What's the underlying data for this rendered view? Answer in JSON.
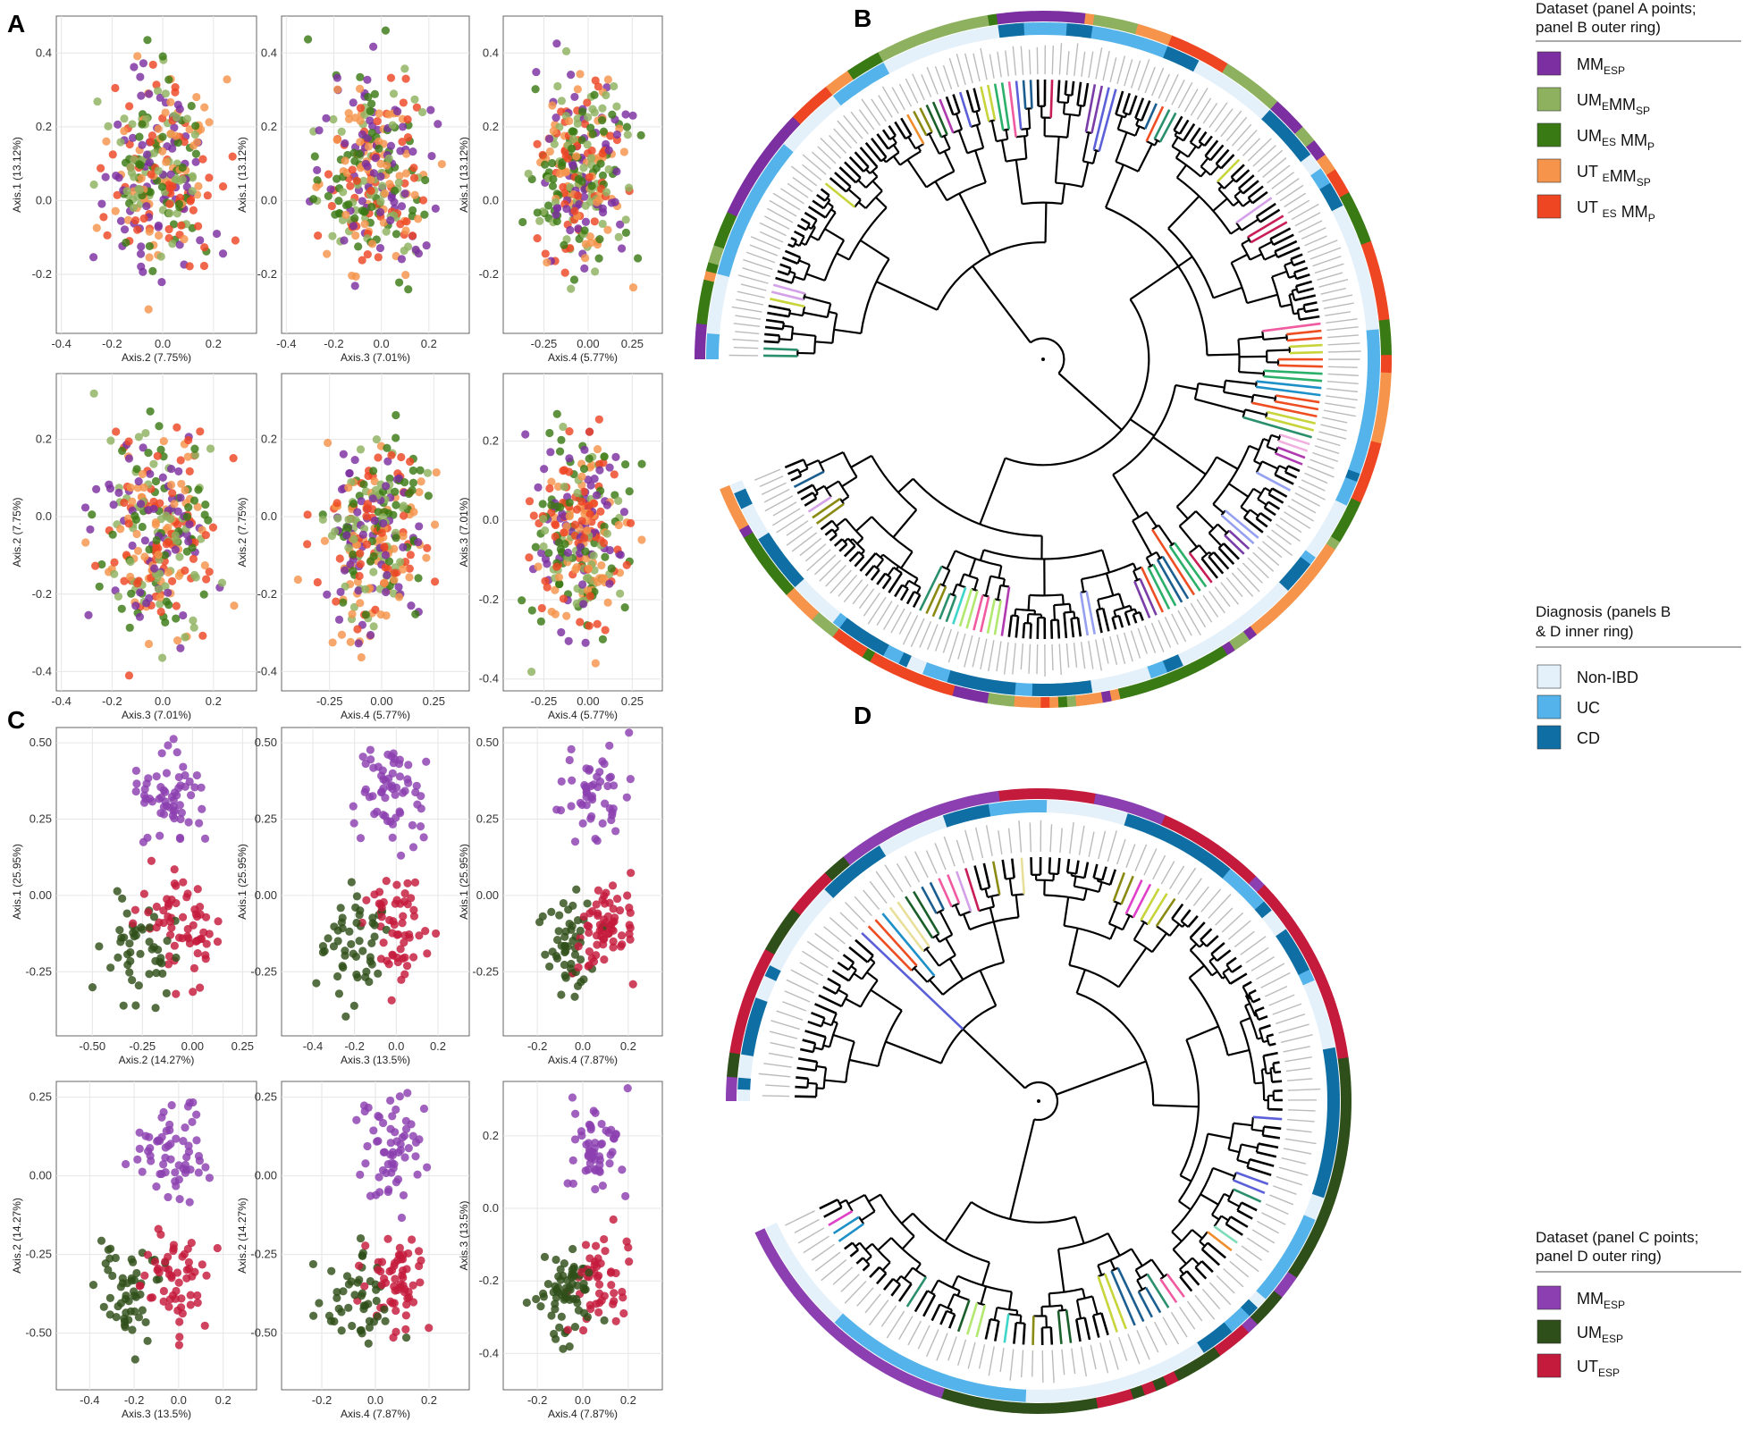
{
  "panel_letters": {
    "a": "A",
    "b": "B",
    "c": "C",
    "d": "D"
  },
  "colors": {
    "MM_ESP": "#7b2fa0",
    "UM_E_MM_SP": "#8db15f",
    "UM_ES_MM_P": "#3a7a14",
    "UT_E_MM_SP": "#f5944a",
    "UT_ES_MM_P": "#ee4623",
    "C_MM": "#8b3fb0",
    "C_UM": "#2f4f1a",
    "C_UT": "#c41a3c",
    "Non-IBD": "#e4f0fa",
    "UC": "#53b3ea",
    "CD": "#0f6fa4"
  },
  "legend_a": {
    "title_line1": "Dataset (panel A points;",
    "title_line2": "panel B outer ring)",
    "items": [
      {
        "key": "MM_ESP",
        "main1": "MM",
        "sub1": "ESP",
        "main2": "",
        "sub2": ""
      },
      {
        "key": "UM_E_MM_SP",
        "main1": "UM",
        "sub1": "E",
        "main2": "MM",
        "sub2": "SP"
      },
      {
        "key": "UM_ES_MM_P",
        "main1": "UM",
        "sub1": "ES",
        "main2": " MM",
        "sub2": "P"
      },
      {
        "key": "UT_E_MM_SP",
        "main1": "UT ",
        "sub1": "E",
        "main2": "MM",
        "sub2": "SP"
      },
      {
        "key": "UT_ES_MM_P",
        "main1": "UT ",
        "sub1": "ES",
        "main2": " MM",
        "sub2": "P"
      }
    ]
  },
  "legend_diag": {
    "title_line1": "Diagnosis (panels B",
    "title_line2": "& D inner ring)",
    "items": [
      {
        "key": "Non-IBD",
        "label": "Non-IBD"
      },
      {
        "key": "UC",
        "label": "UC"
      },
      {
        "key": "CD",
        "label": "CD"
      }
    ]
  },
  "legend_c": {
    "title_line1": "Dataset (panel C points;",
    "title_line2": "panel D outer ring)",
    "items": [
      {
        "key": "C_MM",
        "main1": "MM",
        "sub1": "ESP",
        "main2": "",
        "sub2": ""
      },
      {
        "key": "C_UM",
        "main1": "UM",
        "sub1": "ESP",
        "main2": "",
        "sub2": ""
      },
      {
        "key": "C_UT",
        "main1": "UT",
        "sub1": "ESP",
        "main2": "",
        "sub2": ""
      }
    ]
  },
  "chart_data": [
    {
      "panel": "A",
      "type": "scatter",
      "groups": [
        "MM_ESP",
        "UM_E_MM_SP",
        "UM_ES_MM_P",
        "UT_E_MM_SP",
        "UT_ES_MM_P"
      ],
      "subplots": [
        {
          "xlabel": "Axis.2 (7.75%)",
          "ylabel": "Axis.1 (13.12%)",
          "xlim": [
            -0.42,
            0.37
          ],
          "ylim": [
            -0.36,
            0.5
          ],
          "xticks": [
            -0.4,
            -0.2,
            0.0,
            0.2
          ],
          "xticklabels": [
            "-0.4",
            "-0.2",
            "0.0",
            "0.2"
          ],
          "yticks": [
            -0.2,
            0.0,
            0.2,
            0.4
          ],
          "yticklabels": [
            "-0.2",
            "0.0",
            "0.2",
            "0.4"
          ],
          "seed": 11
        },
        {
          "xlabel": "Axis.3 (7.01%)",
          "ylabel": "Axis.1 (13.12%)",
          "xlim": [
            -0.42,
            0.37
          ],
          "ylim": [
            -0.36,
            0.5
          ],
          "xticks": [
            -0.4,
            -0.2,
            0.0,
            0.2
          ],
          "xticklabels": [
            "-0.4",
            "-0.2",
            "0.0",
            "0.2"
          ],
          "yticks": [
            -0.2,
            0.0,
            0.2,
            0.4
          ],
          "yticklabels": [
            "-0.2",
            "0.0",
            "0.2",
            "0.4"
          ],
          "seed": 23
        },
        {
          "xlabel": "Axis.4 (5.77%)",
          "ylabel": "Axis.1 (13.12%)",
          "xlim": [
            -0.48,
            0.42
          ],
          "ylim": [
            -0.36,
            0.5
          ],
          "xticks": [
            -0.25,
            0.0,
            0.25
          ],
          "xticklabels": [
            "-0.25",
            "0.00",
            "0.25"
          ],
          "yticks": [
            -0.2,
            0.0,
            0.2,
            0.4
          ],
          "yticklabels": [
            "-0.2",
            "0.0",
            "0.2",
            "0.4"
          ],
          "seed": 37
        },
        {
          "xlabel": "Axis.3 (7.01%)",
          "ylabel": "Axis.2 (7.75%)",
          "xlim": [
            -0.42,
            0.37
          ],
          "ylim": [
            -0.45,
            0.37
          ],
          "xticks": [
            -0.4,
            -0.2,
            0.0,
            0.2
          ],
          "xticklabels": [
            "-0.4",
            "-0.2",
            "0.0",
            "0.2"
          ],
          "yticks": [
            -0.4,
            -0.2,
            0.0,
            0.2
          ],
          "yticklabels": [
            "-0.4",
            "-0.2",
            "0.0",
            "0.2"
          ],
          "seed": 41
        },
        {
          "xlabel": "Axis.4 (5.77%)",
          "ylabel": "Axis.2 (7.75%)",
          "xlim": [
            -0.48,
            0.42
          ],
          "ylim": [
            -0.45,
            0.37
          ],
          "xticks": [
            -0.25,
            0.0,
            0.25
          ],
          "xticklabels": [
            "-0.25",
            "0.00",
            "0.25"
          ],
          "yticks": [
            -0.4,
            -0.2,
            0.0,
            0.2
          ],
          "yticklabels": [
            "-0.4",
            "-0.2",
            "0.0",
            "0.2"
          ],
          "seed": 53
        },
        {
          "xlabel": "Axis.4 (5.77%)",
          "ylabel": "Axis.3 (7.01%)",
          "xlim": [
            -0.48,
            0.42
          ],
          "ylim": [
            -0.43,
            0.37
          ],
          "xticks": [
            -0.25,
            0.0,
            0.25
          ],
          "xticklabels": [
            "-0.25",
            "0.00",
            "0.25"
          ],
          "yticks": [
            -0.4,
            -0.2,
            0.0,
            0.2
          ],
          "yticklabels": [
            "-0.4",
            "-0.2",
            "0.0",
            "0.2"
          ],
          "seed": 67
        }
      ]
    },
    {
      "panel": "C",
      "type": "scatter",
      "groups": [
        "C_MM",
        "C_UM",
        "C_UT"
      ],
      "subplots": [
        {
          "xlabel": "Axis.2 (14.27%)",
          "ylabel": "Axis.1 (25.95%)",
          "xlim": [
            -0.68,
            0.32
          ],
          "ylim": [
            -0.46,
            0.55
          ],
          "xticks": [
            -0.5,
            -0.25,
            0.0,
            0.25
          ],
          "xticklabels": [
            "-0.50",
            "-0.25",
            "0.00",
            "0.25"
          ],
          "yticks": [
            -0.25,
            0.0,
            0.25,
            0.5
          ],
          "yticklabels": [
            "-0.25",
            "0.00",
            "0.25",
            "0.50"
          ],
          "seed": 71
        },
        {
          "xlabel": "Axis.3 (13.5%)",
          "ylabel": "Axis.1 (25.95%)",
          "xlim": [
            -0.55,
            0.35
          ],
          "ylim": [
            -0.46,
            0.55
          ],
          "xticks": [
            -0.4,
            -0.2,
            0.0,
            0.2
          ],
          "xticklabels": [
            "-0.4",
            "-0.2",
            "0.0",
            "0.2"
          ],
          "yticks": [
            -0.25,
            0.0,
            0.25,
            0.5
          ],
          "yticklabels": [
            "-0.25",
            "0.00",
            "0.25",
            "0.50"
          ],
          "seed": 83
        },
        {
          "xlabel": "Axis.4 (7.87%)",
          "ylabel": "Axis.1 (25.95%)",
          "xlim": [
            -0.35,
            0.35
          ],
          "ylim": [
            -0.46,
            0.55
          ],
          "xticks": [
            -0.2,
            0.0,
            0.2
          ],
          "xticklabels": [
            "-0.2",
            "0.0",
            "0.2"
          ],
          "yticks": [
            -0.25,
            0.0,
            0.25,
            0.5
          ],
          "yticklabels": [
            "-0.25",
            "0.00",
            "0.25",
            "0.50"
          ],
          "seed": 97
        },
        {
          "xlabel": "Axis.3 (13.5%)",
          "ylabel": "Axis.2 (14.27%)",
          "xlim": [
            -0.55,
            0.35
          ],
          "ylim": [
            -0.68,
            0.3
          ],
          "xticks": [
            -0.4,
            -0.2,
            0.0,
            0.2
          ],
          "xticklabels": [
            "-0.4",
            "-0.2",
            "0.0",
            "0.2"
          ],
          "yticks": [
            -0.5,
            -0.25,
            0.0,
            0.25
          ],
          "yticklabels": [
            "-0.50",
            "-0.25",
            "0.00",
            "0.25"
          ],
          "seed": 101
        },
        {
          "xlabel": "Axis.4 (7.87%)",
          "ylabel": "Axis.2 (14.27%)",
          "xlim": [
            -0.35,
            0.35
          ],
          "ylim": [
            -0.68,
            0.3
          ],
          "xticks": [
            -0.2,
            0.0,
            0.2
          ],
          "xticklabels": [
            "-0.2",
            "0.0",
            "0.2"
          ],
          "yticks": [
            -0.5,
            -0.25,
            0.0,
            0.25
          ],
          "yticklabels": [
            "-0.50",
            "-0.25",
            "0.00",
            "0.25"
          ],
          "seed": 113
        },
        {
          "xlabel": "Axis.4 (7.87%)",
          "ylabel": "Axis.3 (13.5%)",
          "xlim": [
            -0.35,
            0.35
          ],
          "ylim": [
            -0.5,
            0.35
          ],
          "xticks": [
            -0.2,
            0.0,
            0.2
          ],
          "xticklabels": [
            "-0.2",
            "0.0",
            "0.2"
          ],
          "yticks": [
            -0.4,
            -0.2,
            0.0,
            0.2
          ],
          "yticklabels": [
            "-0.4",
            "-0.2",
            "0.0",
            "0.2"
          ],
          "seed": 127
        }
      ]
    },
    {
      "panel": "B",
      "type": "other",
      "kind": "circular dendrogram",
      "outer_ring": "dataset (panel A groups)",
      "inner_ring": "diagnosis",
      "leaves": 230,
      "seed": 131
    },
    {
      "panel": "D",
      "type": "other",
      "kind": "circular dendrogram",
      "outer_ring": "dataset (panel C groups)",
      "inner_ring": "diagnosis",
      "leaves": 150,
      "seed": 149
    }
  ]
}
